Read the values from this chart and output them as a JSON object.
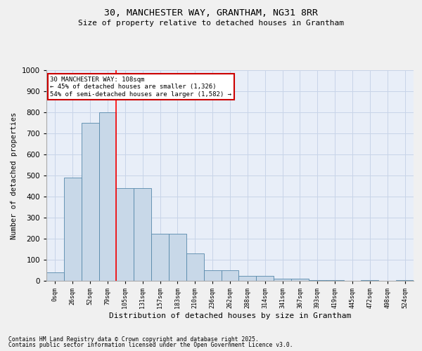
{
  "title_line1": "30, MANCHESTER WAY, GRANTHAM, NG31 8RR",
  "title_line2": "Size of property relative to detached houses in Grantham",
  "xlabel": "Distribution of detached houses by size in Grantham",
  "ylabel": "Number of detached properties",
  "categories": [
    "0sqm",
    "26sqm",
    "52sqm",
    "79sqm",
    "105sqm",
    "131sqm",
    "157sqm",
    "183sqm",
    "210sqm",
    "236sqm",
    "262sqm",
    "288sqm",
    "314sqm",
    "341sqm",
    "367sqm",
    "393sqm",
    "419sqm",
    "445sqm",
    "472sqm",
    "498sqm",
    "524sqm"
  ],
  "bar_heights": [
    40,
    490,
    750,
    800,
    440,
    440,
    225,
    225,
    130,
    50,
    50,
    25,
    25,
    10,
    10,
    5,
    5,
    0,
    5,
    0,
    5
  ],
  "bar_color": "#c8d8e8",
  "bar_edge_color": "#5588aa",
  "red_line_x": 4,
  "annotation_title": "30 MANCHESTER WAY: 108sqm",
  "annotation_line2": "← 45% of detached houses are smaller (1,326)",
  "annotation_line3": "54% of semi-detached houses are larger (1,582) →",
  "annotation_box_color": "#ffffff",
  "annotation_box_edge": "#cc0000",
  "ylim": [
    0,
    1000
  ],
  "yticks": [
    0,
    100,
    200,
    300,
    400,
    500,
    600,
    700,
    800,
    900,
    1000
  ],
  "footnote1": "Contains HM Land Registry data © Crown copyright and database right 2025.",
  "footnote2": "Contains public sector information licensed under the Open Government Licence v3.0.",
  "grid_color": "#c8d4e8",
  "bg_color": "#e8eef8",
  "fig_bg_color": "#f0f0f0"
}
